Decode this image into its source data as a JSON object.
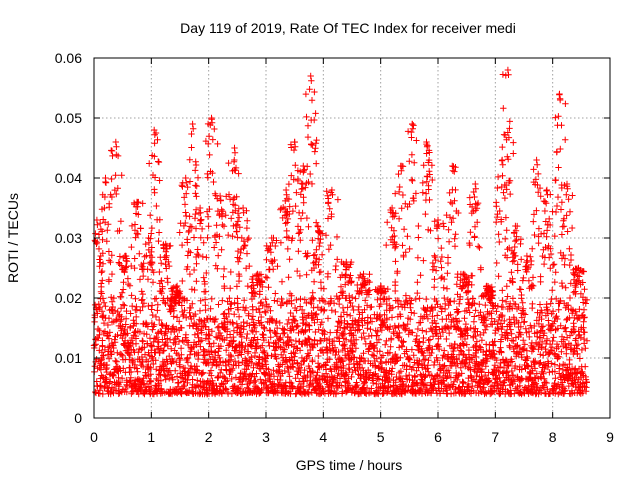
{
  "chart_data": {
    "type": "scatter",
    "title": "Day 119 of 2019, Rate Of TEC Index for receiver medi",
    "xlabel": "GPS time / hours",
    "ylabel": "ROTI / TECUs",
    "xlim": [
      0,
      9
    ],
    "ylim": [
      0,
      0.06
    ],
    "xticks": [
      0,
      1,
      2,
      3,
      4,
      5,
      6,
      7,
      8,
      9
    ],
    "yticks": [
      0,
      0.01,
      0.02,
      0.03,
      0.04,
      0.05,
      0.06
    ],
    "xtick_labels": [
      "0",
      "1",
      "2",
      "3",
      "4",
      "5",
      "6",
      "7",
      "8",
      "9"
    ],
    "ytick_labels": [
      "0",
      "0.01",
      "0.02",
      "0.03",
      "0.04",
      "0.05",
      "0.06"
    ],
    "grid": true,
    "marker": "+",
    "series": [
      {
        "name": "ROTI",
        "color": "#ff0000",
        "x_range": [
          0,
          8.6
        ],
        "typical_range": [
          0.004,
          0.02
        ],
        "peaks": [
          {
            "x": 0.05,
            "y": 0.033
          },
          {
            "x": 0.2,
            "y": 0.04
          },
          {
            "x": 0.38,
            "y": 0.046
          },
          {
            "x": 0.55,
            "y": 0.027
          },
          {
            "x": 0.75,
            "y": 0.036
          },
          {
            "x": 0.95,
            "y": 0.03
          },
          {
            "x": 1.05,
            "y": 0.048
          },
          {
            "x": 1.25,
            "y": 0.029
          },
          {
            "x": 1.45,
            "y": 0.022
          },
          {
            "x": 1.6,
            "y": 0.04
          },
          {
            "x": 1.72,
            "y": 0.049
          },
          {
            "x": 1.85,
            "y": 0.035
          },
          {
            "x": 2.05,
            "y": 0.05
          },
          {
            "x": 2.2,
            "y": 0.037
          },
          {
            "x": 2.45,
            "y": 0.045
          },
          {
            "x": 2.6,
            "y": 0.035
          },
          {
            "x": 2.85,
            "y": 0.024
          },
          {
            "x": 3.1,
            "y": 0.03
          },
          {
            "x": 3.35,
            "y": 0.038
          },
          {
            "x": 3.5,
            "y": 0.046
          },
          {
            "x": 3.65,
            "y": 0.042
          },
          {
            "x": 3.78,
            "y": 0.057
          },
          {
            "x": 3.9,
            "y": 0.032
          },
          {
            "x": 4.15,
            "y": 0.038
          },
          {
            "x": 4.4,
            "y": 0.026
          },
          {
            "x": 4.7,
            "y": 0.024
          },
          {
            "x": 5.0,
            "y": 0.022
          },
          {
            "x": 5.2,
            "y": 0.035
          },
          {
            "x": 5.35,
            "y": 0.042
          },
          {
            "x": 5.55,
            "y": 0.049
          },
          {
            "x": 5.8,
            "y": 0.046
          },
          {
            "x": 6.0,
            "y": 0.033
          },
          {
            "x": 6.25,
            "y": 0.042
          },
          {
            "x": 6.45,
            "y": 0.024
          },
          {
            "x": 6.65,
            "y": 0.039
          },
          {
            "x": 6.85,
            "y": 0.022
          },
          {
            "x": 7.12,
            "y": 0.043
          },
          {
            "x": 7.22,
            "y": 0.058
          },
          {
            "x": 7.35,
            "y": 0.032
          },
          {
            "x": 7.55,
            "y": 0.027
          },
          {
            "x": 7.72,
            "y": 0.043
          },
          {
            "x": 7.9,
            "y": 0.038
          },
          {
            "x": 8.12,
            "y": 0.054
          },
          {
            "x": 8.25,
            "y": 0.039
          },
          {
            "x": 8.45,
            "y": 0.025
          }
        ]
      }
    ]
  }
}
